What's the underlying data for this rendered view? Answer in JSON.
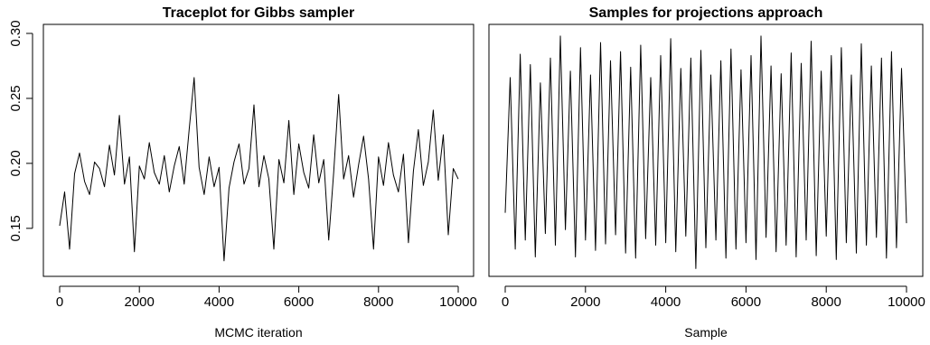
{
  "chart_data": [
    {
      "type": "line",
      "title": "Traceplot for Gibbs sampler",
      "xlabel": "MCMC iteration",
      "ylabel": "",
      "xlim": [
        0,
        10000
      ],
      "ylim": [
        0.12,
        0.3
      ],
      "x_ticks": [
        "0",
        "2000",
        "4000",
        "6000",
        "8000",
        "10000"
      ],
      "y_ticks": [
        "0.15",
        "0.20",
        "0.25",
        "0.30"
      ],
      "series": [
        {
          "x": [
            0,
            125,
            250,
            375,
            500,
            625,
            750,
            875,
            1000,
            1125,
            1250,
            1375,
            1500,
            1625,
            1750,
            1875,
            2000,
            2125,
            2250,
            2375,
            2500,
            2625,
            2750,
            2875,
            3000,
            3125,
            3250,
            3375,
            3500,
            3625,
            3750,
            3875,
            4000,
            4125,
            4250,
            4375,
            4500,
            4625,
            4750,
            4875,
            5000,
            5125,
            5250,
            5375,
            5500,
            5625,
            5750,
            5875,
            6000,
            6125,
            6250,
            6375,
            6500,
            6625,
            6750,
            6875,
            7000,
            7125,
            7250,
            7375,
            7500,
            7625,
            7750,
            7875,
            8000,
            8125,
            8250,
            8375,
            8500,
            8625,
            8750,
            8875,
            9000,
            9125,
            9250,
            9375,
            9500,
            9625,
            9750,
            9875,
            10000
          ],
          "values": [
            0.152,
            0.178,
            0.134,
            0.192,
            0.208,
            0.186,
            0.176,
            0.201,
            0.196,
            0.182,
            0.214,
            0.191,
            0.237,
            0.184,
            0.205,
            0.132,
            0.198,
            0.188,
            0.216,
            0.193,
            0.184,
            0.206,
            0.178,
            0.198,
            0.213,
            0.184,
            0.226,
            0.266,
            0.197,
            0.176,
            0.205,
            0.182,
            0.197,
            0.125,
            0.181,
            0.201,
            0.215,
            0.184,
            0.196,
            0.245,
            0.182,
            0.206,
            0.188,
            0.134,
            0.203,
            0.185,
            0.233,
            0.176,
            0.215,
            0.193,
            0.181,
            0.222,
            0.185,
            0.203,
            0.141,
            0.193,
            0.253,
            0.188,
            0.206,
            0.174,
            0.199,
            0.221,
            0.188,
            0.134,
            0.205,
            0.183,
            0.216,
            0.191,
            0.178,
            0.207,
            0.139,
            0.194,
            0.226,
            0.183,
            0.201,
            0.241,
            0.187,
            0.222,
            0.145,
            0.196,
            0.188
          ]
        }
      ]
    },
    {
      "type": "line",
      "title": "Samples for projections approach",
      "xlabel": "Sample",
      "ylabel": "",
      "xlim": [
        0,
        10000
      ],
      "ylim": [
        0.12,
        0.3
      ],
      "x_ticks": [
        "0",
        "2000",
        "4000",
        "6000",
        "8000",
        "10000"
      ],
      "y_ticks": [
        "0.15",
        "0.20",
        "0.25",
        "0.30"
      ],
      "series": [
        {
          "x": [
            0,
            125,
            250,
            375,
            500,
            625,
            750,
            875,
            1000,
            1125,
            1250,
            1375,
            1500,
            1625,
            1750,
            1875,
            2000,
            2125,
            2250,
            2375,
            2500,
            2625,
            2750,
            2875,
            3000,
            3125,
            3250,
            3375,
            3500,
            3625,
            3750,
            3875,
            4000,
            4125,
            4250,
            4375,
            4500,
            4625,
            4750,
            4875,
            5000,
            5125,
            5250,
            5375,
            5500,
            5625,
            5750,
            5875,
            6000,
            6125,
            6250,
            6375,
            6500,
            6625,
            6750,
            6875,
            7000,
            7125,
            7250,
            7375,
            7500,
            7625,
            7750,
            7875,
            8000,
            8125,
            8250,
            8375,
            8500,
            8625,
            8750,
            8875,
            9000,
            9125,
            9250,
            9375,
            9500,
            9625,
            9750,
            9875,
            10000
          ],
          "values": [
            0.162,
            0.266,
            0.134,
            0.284,
            0.141,
            0.276,
            0.128,
            0.262,
            0.146,
            0.281,
            0.137,
            0.298,
            0.149,
            0.271,
            0.128,
            0.289,
            0.141,
            0.268,
            0.133,
            0.293,
            0.138,
            0.279,
            0.145,
            0.286,
            0.131,
            0.274,
            0.127,
            0.291,
            0.142,
            0.266,
            0.137,
            0.283,
            0.139,
            0.296,
            0.132,
            0.273,
            0.144,
            0.281,
            0.119,
            0.287,
            0.135,
            0.268,
            0.141,
            0.279,
            0.127,
            0.288,
            0.134,
            0.272,
            0.139,
            0.283,
            0.126,
            0.298,
            0.143,
            0.275,
            0.132,
            0.269,
            0.137,
            0.285,
            0.128,
            0.277,
            0.141,
            0.294,
            0.129,
            0.271,
            0.144,
            0.283,
            0.126,
            0.289,
            0.139,
            0.268,
            0.131,
            0.292,
            0.137,
            0.275,
            0.143,
            0.281,
            0.127,
            0.286,
            0.135,
            0.273,
            0.154
          ]
        }
      ]
    }
  ]
}
